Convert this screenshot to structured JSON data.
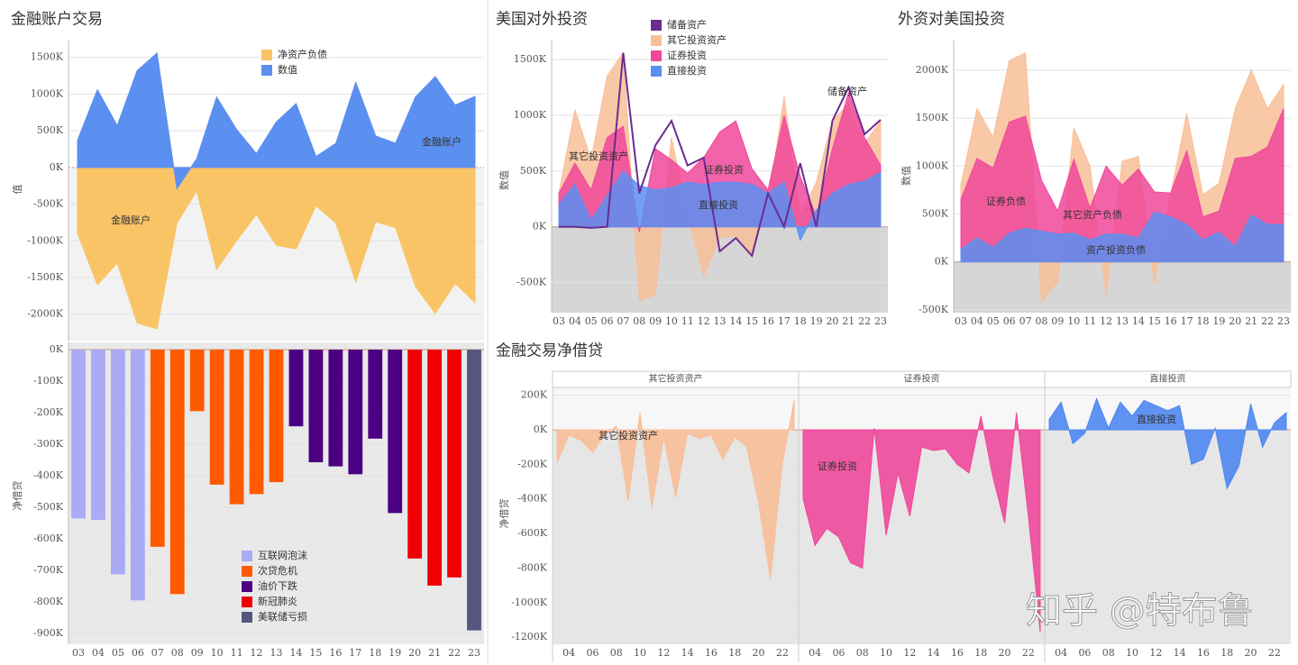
{
  "watermark": "知乎 @特布鲁",
  "chart_data": [
    {
      "type": "area",
      "title": "金融账户交易",
      "y_label": "值",
      "categories": [
        "03",
        "04",
        "05",
        "06",
        "07",
        "08",
        "09",
        "10",
        "11",
        "12",
        "13",
        "14",
        "15",
        "16",
        "17",
        "18",
        "19",
        "20",
        "21",
        "22",
        "23"
      ],
      "series": [
        {
          "name": "净资产负债",
          "color": "#f9c466",
          "values": [
            -900,
            -1600,
            -1300,
            -2120,
            -2200,
            -760,
            -320,
            -1390,
            -1000,
            -640,
            -1060,
            -1110,
            -520,
            -760,
            -1560,
            -740,
            -820,
            -1620,
            -1990,
            -1580,
            -1840
          ]
        },
        {
          "name": "数值",
          "color": "#5b8ff0",
          "values": [
            370,
            1060,
            570,
            1320,
            1560,
            -290,
            120,
            960,
            520,
            190,
            620,
            870,
            150,
            330,
            1160,
            430,
            330,
            960,
            1240,
            850,
            970
          ]
        }
      ],
      "annotations": [
        "金融账户",
        "金融账户"
      ],
      "ylim": [
        -2360,
        1730
      ],
      "yticks": [
        {
          "value": -2000,
          "label": "-2000K"
        },
        {
          "value": -1500,
          "label": "-1500K"
        },
        {
          "value": -1000,
          "label": "-1000K"
        },
        {
          "value": -500,
          "label": "-500K"
        },
        {
          "value": 0,
          "label": "0K"
        },
        {
          "value": 500,
          "label": "500K"
        },
        {
          "value": 1000,
          "label": "1000K"
        },
        {
          "value": 1500,
          "label": "1500K"
        }
      ],
      "grid": true,
      "legend": "top"
    },
    {
      "type": "bar",
      "y_label": "净借贷",
      "categories": [
        "03",
        "04",
        "05",
        "06",
        "07",
        "08",
        "09",
        "10",
        "11",
        "12",
        "13",
        "14",
        "15",
        "16",
        "17",
        "18",
        "19",
        "20",
        "21",
        "22",
        "23"
      ],
      "series": [
        {
          "name": "互联网泡沫",
          "color": "#aaaaf5",
          "values": [
            -535,
            -540,
            -712,
            -795,
            null,
            null,
            null,
            null,
            null,
            null,
            null,
            null,
            null,
            null,
            null,
            null,
            null,
            null,
            null,
            null,
            null
          ]
        },
        {
          "name": "次贷危机",
          "color": "#ff5a00",
          "values": [
            null,
            null,
            null,
            null,
            -625,
            -775,
            -195,
            -428,
            -490,
            -458,
            -420,
            null,
            null,
            null,
            null,
            null,
            null,
            null,
            null,
            null,
            null
          ]
        },
        {
          "name": "油价下跌",
          "color": "#4b0082",
          "values": [
            null,
            null,
            null,
            null,
            null,
            null,
            null,
            null,
            null,
            null,
            null,
            -243,
            -357,
            -370,
            -395,
            -282,
            -518,
            null,
            null,
            null,
            null
          ]
        },
        {
          "name": "新冠肺炎",
          "color": "#f00000",
          "values": [
            null,
            null,
            null,
            null,
            null,
            null,
            null,
            null,
            null,
            null,
            null,
            null,
            null,
            null,
            null,
            null,
            null,
            -662,
            -748,
            -722,
            null
          ]
        },
        {
          "name": "美联储亏损",
          "color": "#555580",
          "values": [
            null,
            null,
            null,
            null,
            null,
            null,
            null,
            null,
            null,
            null,
            null,
            null,
            null,
            null,
            null,
            null,
            null,
            null,
            null,
            null,
            -890
          ]
        }
      ],
      "ylim": [
        -934,
        23
      ],
      "yticks": [
        {
          "value": -900,
          "label": "-900K"
        },
        {
          "value": -800,
          "label": "-800K"
        },
        {
          "value": -700,
          "label": "-700K"
        },
        {
          "value": -600,
          "label": "-600K"
        },
        {
          "value": -500,
          "label": "-500K"
        },
        {
          "value": -400,
          "label": "-400K"
        },
        {
          "value": -300,
          "label": "-300K"
        },
        {
          "value": -200,
          "label": "-200K"
        },
        {
          "value": -100,
          "label": "-100K"
        },
        {
          "value": 0,
          "label": "0K"
        }
      ],
      "grid": true,
      "legend": "bottom"
    },
    {
      "type": "area",
      "title": "美国对外投资",
      "y_label": "数值",
      "categories": [
        "03",
        "04",
        "05",
        "06",
        "07",
        "08",
        "09",
        "10",
        "11",
        "12",
        "13",
        "14",
        "15",
        "16",
        "17",
        "18",
        "19",
        "20",
        "21",
        "22",
        "23"
      ],
      "series": [
        {
          "name": "储备资产",
          "color": "#6a2c91",
          "style": "line",
          "values": [
            0,
            0,
            -10,
            0,
            1560,
            300,
            730,
            950,
            550,
            620,
            -220,
            -100,
            -260,
            300,
            0,
            570,
            0,
            950,
            1250,
            830,
            960
          ]
        },
        {
          "name": "其它投资资产",
          "color": "#f8be98",
          "values": [
            300,
            1050,
            600,
            1350,
            1560,
            -660,
            -610,
            800,
            100,
            -440,
            -100,
            -80,
            -250,
            200,
            1170,
            100,
            400,
            950,
            1100,
            750,
            950
          ]
        },
        {
          "name": "证券投资",
          "color": "#f0489a",
          "values": [
            300,
            570,
            330,
            800,
            900,
            -50,
            700,
            600,
            480,
            620,
            850,
            950,
            520,
            330,
            1000,
            450,
            100,
            700,
            1200,
            800,
            550
          ]
        },
        {
          "name": "直接投资",
          "color": "#5b8ff0",
          "values": [
            200,
            380,
            60,
            280,
            500,
            370,
            330,
            350,
            400,
            380,
            400,
            400,
            380,
            300,
            400,
            -120,
            150,
            300,
            380,
            410,
            490
          ]
        }
      ],
      "ylim": [
        -770,
        1670
      ],
      "yticks": [
        {
          "value": -500,
          "label": "-500K"
        },
        {
          "value": 0,
          "label": "0K"
        },
        {
          "value": 500,
          "label": "500K"
        },
        {
          "value": 1000,
          "label": "1000K"
        },
        {
          "value": 1500,
          "label": "1500K"
        }
      ],
      "grid": true,
      "legend": "top"
    },
    {
      "type": "area",
      "title": "外资对美国投资",
      "y_label": "数值",
      "categories": [
        "03",
        "04",
        "05",
        "06",
        "07",
        "08",
        "09",
        "10",
        "11",
        "12",
        "13",
        "14",
        "15",
        "16",
        "17",
        "18",
        "19",
        "20",
        "21",
        "22",
        "23"
      ],
      "series": [
        {
          "name": "其它资产负债",
          "color": "#f8be98",
          "values": [
            800,
            1600,
            1300,
            2100,
            2180,
            -420,
            -200,
            1400,
            1000,
            -350,
            1050,
            1100,
            -230,
            700,
            1550,
            700,
            820,
            1600,
            2000,
            1600,
            1850
          ]
        },
        {
          "name": "证券负债",
          "color": "#f0489a",
          "values": [
            650,
            1080,
            980,
            1460,
            1520,
            850,
            530,
            1070,
            560,
            1000,
            800,
            970,
            730,
            720,
            1160,
            470,
            530,
            1080,
            1100,
            1200,
            1600
          ]
        },
        {
          "name": "资产投资负债",
          "color": "#5b8ff0",
          "values": [
            130,
            250,
            150,
            300,
            350,
            320,
            290,
            300,
            230,
            290,
            290,
            250,
            520,
            470,
            390,
            230,
            310,
            160,
            490,
            390,
            390
          ]
        }
      ],
      "ylim": [
        -530,
        2310
      ],
      "yticks": [
        {
          "value": -500,
          "label": "-500K"
        },
        {
          "value": 0,
          "label": "0K"
        },
        {
          "value": 500,
          "label": "500K"
        },
        {
          "value": 1000,
          "label": "1000K"
        },
        {
          "value": 1500,
          "label": "1500K"
        },
        {
          "value": 2000,
          "label": "2000K"
        }
      ],
      "grid": true,
      "legend": "none"
    },
    {
      "type": "facet-area",
      "title": "金融交易净借贷",
      "y_label": "净借贷",
      "categories": [
        null,
        "04",
        null,
        "06",
        null,
        "08",
        null,
        "10",
        null,
        "12",
        null,
        "14",
        null,
        "16",
        null,
        "18",
        null,
        "20",
        null,
        "22",
        null
      ],
      "series": [
        {
          "name": "其它投资资产",
          "color": "#f8be98",
          "values": [
            -190,
            -30,
            -60,
            -130,
            -30,
            20,
            -410,
            100,
            -450,
            -40,
            -390,
            -20,
            -50,
            -30,
            -170,
            -40,
            -100,
            -420,
            -860,
            -200,
            170
          ]
        },
        {
          "name": "证券投资",
          "color": "#f0489a",
          "values": [
            -400,
            -670,
            -570,
            -620,
            -770,
            -800,
            10,
            -610,
            -250,
            -500,
            -100,
            -120,
            -110,
            -200,
            -250,
            80,
            -270,
            -540,
            100,
            -500,
            -1170
          ]
        },
        {
          "name": "直接投资",
          "color": "#4f86f0",
          "values": [
            60,
            160,
            -80,
            -20,
            180,
            10,
            160,
            80,
            170,
            140,
            110,
            140,
            -200,
            -170,
            10,
            -340,
            -210,
            150,
            -100,
            40,
            100
          ]
        }
      ],
      "ylim": [
        -1241,
        245
      ],
      "yticks": [
        {
          "value": -1200,
          "label": "-1200K"
        },
        {
          "value": -1000,
          "label": "-1000K"
        },
        {
          "value": -800,
          "label": "-800K"
        },
        {
          "value": -600,
          "label": "-600K"
        },
        {
          "value": -400,
          "label": "-400K"
        },
        {
          "value": -200,
          "label": "-200K"
        },
        {
          "value": 0,
          "label": "0K"
        },
        {
          "value": 200,
          "label": "200K"
        }
      ],
      "grid": true,
      "legend": "none"
    }
  ]
}
